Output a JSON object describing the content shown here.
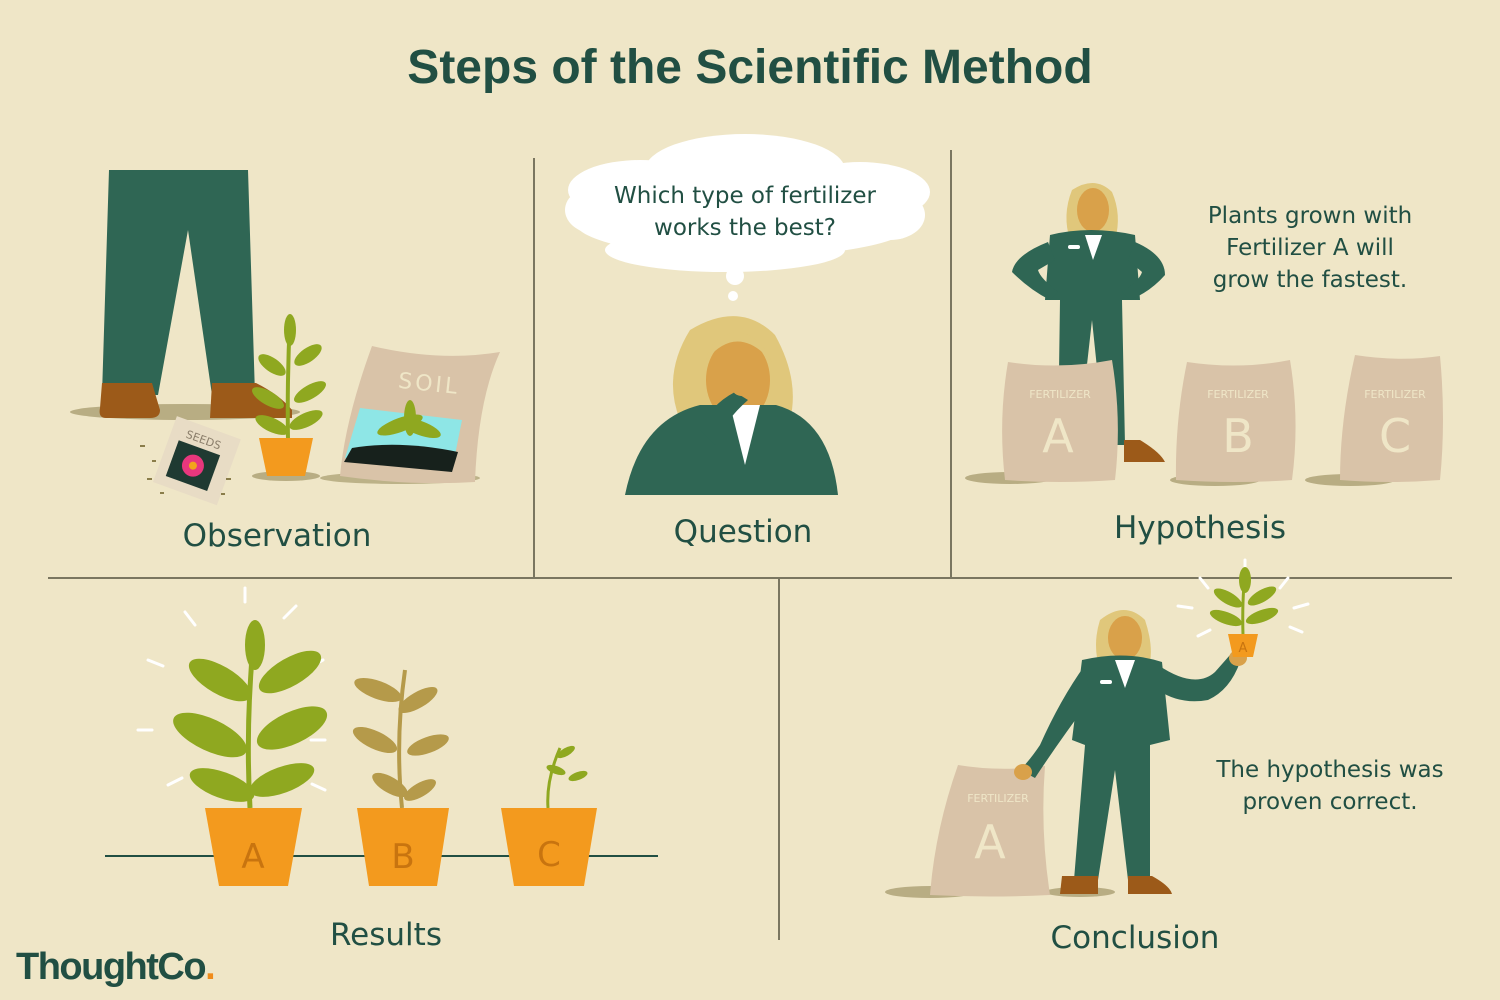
{
  "title": "Steps of the Scientific Method",
  "colors": {
    "background": "#efe6c7",
    "dark_green": "#214f43",
    "pot_orange": "#f39a1e",
    "bag_beige": "#d9c3a8",
    "leaf_green": "#8fa820",
    "skin": "#d9a14a",
    "hair": "#e0c77b"
  },
  "steps": {
    "observation": {
      "label": "Observation",
      "seeds_text": "SEEDS",
      "soil_text": "SOIL"
    },
    "question": {
      "label": "Question",
      "thought_line1": "Which type of fertilizer",
      "thought_line2": "works the best?"
    },
    "hypothesis": {
      "label": "Hypothesis",
      "line1": "Plants grown with",
      "line2": "Fertilizer A will",
      "line3": "grow the fastest.",
      "bag_word": "FERTILIZER",
      "bags": [
        "A",
        "B",
        "C"
      ]
    },
    "results": {
      "label": "Results",
      "pots": [
        "A",
        "B",
        "C"
      ]
    },
    "conclusion": {
      "label": "Conclusion",
      "line1": "The hypothesis was",
      "line2": "proven correct.",
      "bag_word": "FERTILIZER",
      "bag_letter": "A",
      "pot_letter": "A"
    }
  },
  "brand": {
    "name": "ThoughtCo",
    "dot": "."
  }
}
